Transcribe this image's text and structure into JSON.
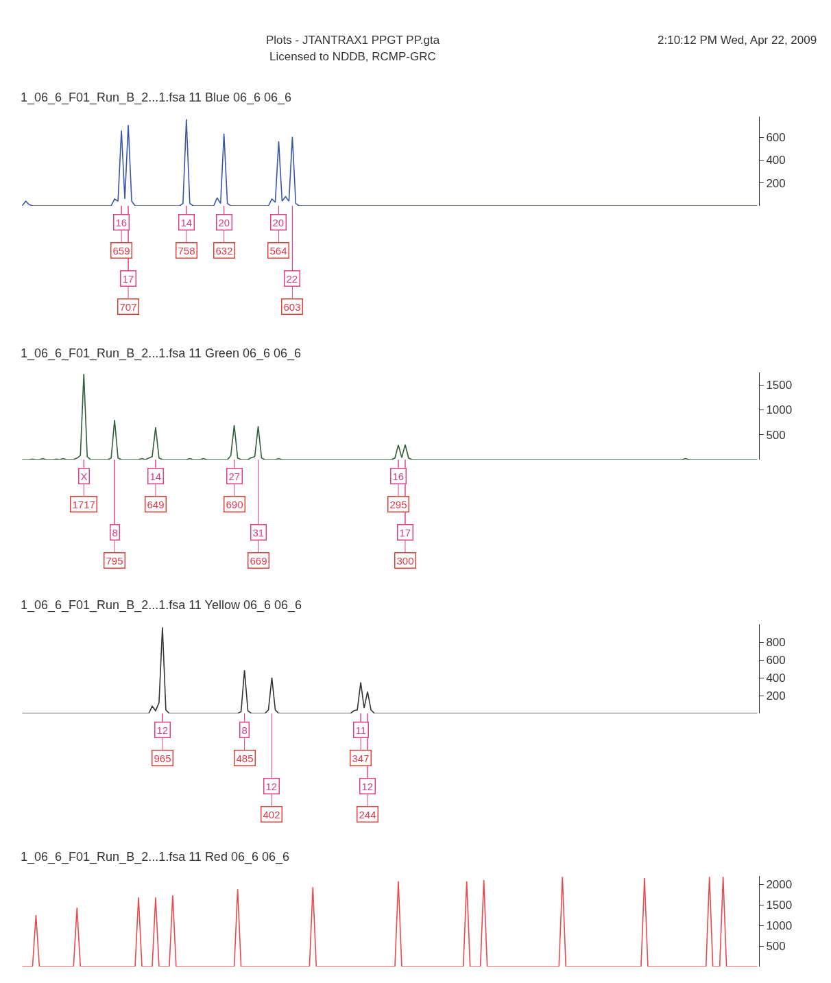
{
  "chart_data": [
    {
      "type": "line",
      "title": "1_06_6_F01_Run_B_2...1.fsa 11 Blue 06_6 06_6",
      "annotations": [
        "Plots - JTANTRAX1 PPGT PP.gta",
        "Licensed to NDDB, RCMP-GRC",
        "2:10:12 PM Wed, Apr 22, 2009",
        "16",
        "659",
        "17",
        "707",
        "14",
        "758",
        "20",
        "632",
        "20",
        "564",
        "22",
        "603"
      ],
      "color": "#3a56a8",
      "tick_labels": "y",
      "ylim": [
        0,
        780
      ],
      "yticks": [
        200,
        400,
        600
      ],
      "categories": [
        null,
        null,
        null,
        null,
        null,
        null,
        null,
        null,
        null,
        null,
        null,
        null,
        null,
        null,
        null,
        null,
        null,
        null,
        null,
        null,
        null,
        null,
        null,
        null,
        null,
        null,
        null,
        null,
        null,
        null,
        null,
        null,
        null,
        null,
        null,
        null,
        null,
        null,
        null,
        null,
        null,
        null,
        null,
        null,
        null,
        null,
        null,
        null,
        null,
        null,
        null,
        null,
        null,
        null,
        null,
        null,
        null,
        null,
        null,
        null,
        null,
        null,
        null,
        null,
        null,
        null,
        null,
        null,
        null,
        null,
        null,
        null,
        null,
        null,
        null,
        null,
        null,
        null,
        null,
        null,
        null,
        null,
        null,
        null,
        null,
        null,
        null,
        null,
        null,
        null,
        null,
        null,
        null,
        null,
        null,
        null,
        null,
        null,
        null,
        null,
        null,
        null,
        null,
        null,
        null,
        null,
        null,
        null,
        null,
        null,
        null,
        null,
        null,
        null,
        null,
        null,
        null,
        null,
        null,
        null,
        null,
        null,
        null,
        null,
        null,
        null,
        null,
        null,
        null,
        null,
        null,
        null,
        null,
        null,
        null,
        null,
        null,
        null,
        null,
        null,
        null,
        null,
        null,
        null,
        null,
        null,
        null,
        null,
        null,
        null,
        null,
        null,
        null,
        null,
        null,
        null,
        null,
        null,
        null,
        null,
        null,
        null,
        null,
        null,
        null,
        null,
        null,
        null,
        null,
        null,
        null,
        null,
        null,
        null,
        null,
        null,
        null,
        null,
        null,
        null,
        null,
        null,
        null,
        null,
        null,
        null,
        null,
        null,
        null,
        null,
        null,
        null,
        null,
        null,
        null,
        null,
        null,
        null,
        null,
        null,
        null,
        null,
        null,
        null,
        null,
        null,
        null,
        null,
        null,
        null,
        null,
        null,
        null,
        null,
        null,
        null
      ],
      "values": [
        0,
        40,
        10,
        0,
        0,
        0,
        0,
        0,
        0,
        0,
        0,
        0,
        0,
        0,
        0,
        0,
        0,
        0,
        0,
        0,
        0,
        0,
        0,
        0,
        0,
        0,
        0,
        60,
        40,
        659,
        60,
        707,
        40,
        0,
        0,
        0,
        0,
        0,
        0,
        0,
        0,
        0,
        0,
        0,
        0,
        0,
        0,
        20,
        758,
        20,
        0,
        0,
        0,
        0,
        0,
        0,
        0,
        70,
        20,
        632,
        20,
        0,
        0,
        0,
        0,
        0,
        0,
        0,
        0,
        0,
        0,
        0,
        0,
        60,
        30,
        564,
        40,
        80,
        40,
        603,
        20,
        0,
        0,
        0,
        0,
        0,
        0,
        0,
        0,
        0,
        0,
        0,
        0,
        0,
        0,
        0,
        0,
        0,
        0,
        0,
        0,
        0,
        0,
        0,
        0,
        0,
        0,
        0,
        0,
        0,
        0,
        0,
        0,
        0,
        0,
        0,
        0,
        0,
        0,
        0,
        0,
        0,
        0,
        0,
        0,
        0,
        0,
        0,
        0,
        0,
        0,
        0,
        0,
        0,
        0,
        0,
        0,
        0,
        0,
        0,
        0,
        0,
        0,
        0,
        0,
        0,
        0,
        0,
        0,
        0,
        0,
        0,
        0,
        0,
        0,
        0,
        0,
        0,
        0,
        0,
        0,
        0,
        0,
        0,
        0,
        0,
        0,
        0,
        0,
        0,
        0,
        0,
        0,
        0,
        0,
        0,
        0,
        0,
        0,
        0,
        0,
        0,
        0,
        0,
        0,
        0,
        0,
        0,
        0,
        0,
        0,
        0,
        0,
        0,
        0,
        0,
        0,
        0,
        0,
        0,
        0,
        0,
        0,
        0,
        0,
        0,
        0,
        0,
        0,
        0,
        0,
        0,
        0,
        0,
        0,
        0
      ]
    },
    {
      "type": "line",
      "title": "1_06_6_F01_Run_B_2...1.fsa 11 Green 06_6 06_6",
      "annotations": [
        "X",
        "1717",
        "8",
        "795",
        "14",
        "649",
        "27",
        "690",
        "31",
        "669",
        "16",
        "295",
        "17",
        "300"
      ],
      "color": "#2e5e3a",
      "tick_labels": "y",
      "ylim": [
        0,
        1750
      ],
      "yticks": [
        500,
        1000,
        1500
      ],
      "categories": [
        null,
        null,
        null,
        null,
        null,
        null,
        null,
        null,
        null,
        null,
        null,
        null,
        null,
        null,
        null,
        null,
        null,
        null,
        null,
        null,
        null,
        null,
        null,
        null,
        null,
        null,
        null,
        null,
        null,
        null,
        null,
        null,
        null,
        null,
        null,
        null,
        null,
        null,
        null,
        null,
        null,
        null,
        null,
        null,
        null,
        null,
        null,
        null,
        null,
        null,
        null,
        null,
        null,
        null,
        null,
        null,
        null,
        null,
        null,
        null,
        null,
        null,
        null,
        null,
        null,
        null,
        null,
        null,
        null,
        null,
        null,
        null,
        null,
        null,
        null,
        null,
        null,
        null,
        null,
        null,
        null,
        null,
        null,
        null,
        null,
        null,
        null,
        null,
        null,
        null,
        null,
        null,
        null,
        null,
        null,
        null,
        null,
        null,
        null,
        null,
        null,
        null,
        null,
        null,
        null,
        null,
        null,
        null,
        null,
        null,
        null,
        null,
        null,
        null,
        null,
        null,
        null,
        null,
        null,
        null,
        null,
        null,
        null,
        null,
        null,
        null,
        null,
        null,
        null,
        null,
        null,
        null,
        null,
        null,
        null,
        null,
        null,
        null,
        null,
        null,
        null,
        null,
        null,
        null,
        null,
        null,
        null,
        null,
        null,
        null,
        null,
        null,
        null,
        null,
        null,
        null,
        null,
        null,
        null,
        null,
        null,
        null,
        null,
        null,
        null,
        null,
        null,
        null,
        null,
        null,
        null,
        null,
        null,
        null,
        null,
        null,
        null,
        null,
        null,
        null,
        null,
        null,
        null,
        null,
        null,
        null,
        null,
        null,
        null,
        null,
        null,
        null,
        null,
        null,
        null,
        null,
        null,
        null,
        null,
        null,
        null,
        null,
        null,
        null,
        null,
        null,
        null,
        null,
        null,
        null,
        null,
        null,
        null,
        null,
        null,
        null
      ],
      "values": [
        0,
        0,
        0,
        10,
        0,
        0,
        20,
        0,
        0,
        0,
        10,
        0,
        20,
        0,
        0,
        0,
        30,
        80,
        1717,
        60,
        0,
        0,
        0,
        0,
        0,
        0,
        30,
        795,
        30,
        0,
        0,
        0,
        0,
        0,
        0,
        20,
        0,
        30,
        60,
        649,
        30,
        0,
        0,
        0,
        0,
        0,
        0,
        0,
        0,
        20,
        0,
        0,
        0,
        20,
        0,
        0,
        0,
        0,
        0,
        0,
        0,
        80,
        690,
        30,
        0,
        0,
        0,
        40,
        60,
        669,
        30,
        0,
        0,
        0,
        0,
        20,
        0,
        0,
        0,
        0,
        0,
        0,
        0,
        0,
        0,
        0,
        0,
        0,
        0,
        0,
        0,
        0,
        0,
        0,
        0,
        0,
        0,
        0,
        0,
        0,
        0,
        0,
        0,
        0,
        0,
        0,
        0,
        0,
        0,
        30,
        295,
        40,
        300,
        30,
        0,
        0,
        0,
        0,
        0,
        0,
        0,
        0,
        0,
        0,
        0,
        0,
        0,
        0,
        0,
        0,
        0,
        0,
        0,
        0,
        0,
        0,
        0,
        0,
        0,
        0,
        0,
        0,
        0,
        0,
        0,
        0,
        0,
        0,
        0,
        0,
        0,
        0,
        0,
        0,
        0,
        0,
        0,
        0,
        0,
        0,
        0,
        0,
        0,
        0,
        0,
        0,
        0,
        0,
        0,
        0,
        0,
        0,
        0,
        0,
        0,
        0,
        0,
        0,
        0,
        0,
        0,
        0,
        0,
        0,
        0,
        0,
        0,
        0,
        0,
        0,
        0,
        0,
        0,
        0,
        20,
        0,
        0,
        0,
        0,
        0,
        0,
        0,
        0,
        0,
        0,
        0,
        0,
        0,
        0,
        0,
        0,
        0,
        0,
        0,
        0,
        0
      ]
    },
    {
      "type": "line",
      "title": "1_06_6_F01_Run_B_2...1.fsa 11 Yellow 06_6 06_6",
      "annotations": [
        "12",
        "965",
        "8",
        "485",
        "12",
        "402",
        "11",
        "347",
        "12",
        "244"
      ],
      "color": "#333333",
      "tick_labels": "y",
      "ylim": [
        0,
        1000
      ],
      "yticks": [
        200,
        400,
        600,
        800
      ],
      "categories": [
        null,
        null,
        null,
        null,
        null,
        null,
        null,
        null,
        null,
        null,
        null,
        null,
        null,
        null,
        null,
        null,
        null,
        null,
        null,
        null,
        null,
        null,
        null,
        null,
        null,
        null,
        null,
        null,
        null,
        null,
        null,
        null,
        null,
        null,
        null,
        null,
        null,
        null,
        null,
        null,
        null,
        null,
        null,
        null,
        null,
        null,
        null,
        null,
        null,
        null,
        null,
        null,
        null,
        null,
        null,
        null,
        null,
        null,
        null,
        null,
        null,
        null,
        null,
        null,
        null,
        null,
        null,
        null,
        null,
        null,
        null,
        null,
        null,
        null,
        null,
        null,
        null,
        null,
        null,
        null,
        null,
        null,
        null,
        null,
        null,
        null,
        null,
        null,
        null,
        null,
        null,
        null,
        null,
        null,
        null,
        null,
        null,
        null,
        null,
        null,
        null,
        null,
        null,
        null,
        null,
        null,
        null,
        null,
        null,
        null,
        null,
        null,
        null,
        null,
        null,
        null,
        null,
        null,
        null,
        null,
        null,
        null,
        null,
        null,
        null,
        null,
        null,
        null,
        null,
        null,
        null,
        null,
        null,
        null,
        null,
        null,
        null,
        null,
        null,
        null,
        null,
        null,
        null,
        null,
        null,
        null,
        null,
        null,
        null,
        null,
        null,
        null,
        null,
        null,
        null,
        null,
        null,
        null,
        null,
        null,
        null,
        null,
        null,
        null,
        null,
        null,
        null,
        null,
        null,
        null,
        null,
        null,
        null,
        null,
        null,
        null,
        null,
        null,
        null,
        null,
        null,
        null,
        null,
        null,
        null,
        null,
        null,
        null,
        null,
        null,
        null,
        null,
        null,
        null,
        null,
        null,
        null,
        null,
        null,
        null,
        null,
        null,
        null,
        null,
        null,
        null,
        null,
        null,
        null,
        null,
        null,
        null,
        null,
        null,
        null,
        null
      ],
      "values": [
        0,
        0,
        0,
        0,
        0,
        0,
        0,
        0,
        0,
        0,
        0,
        0,
        0,
        0,
        0,
        0,
        0,
        0,
        0,
        0,
        0,
        0,
        0,
        0,
        0,
        0,
        0,
        0,
        0,
        0,
        0,
        0,
        0,
        0,
        0,
        0,
        0,
        0,
        80,
        30,
        120,
        965,
        40,
        0,
        0,
        0,
        0,
        0,
        0,
        0,
        0,
        0,
        0,
        0,
        0,
        0,
        0,
        0,
        0,
        0,
        0,
        0,
        0,
        0,
        20,
        485,
        30,
        0,
        0,
        0,
        0,
        0,
        40,
        402,
        40,
        0,
        0,
        0,
        0,
        0,
        0,
        0,
        0,
        0,
        0,
        0,
        0,
        0,
        0,
        0,
        0,
        0,
        0,
        0,
        0,
        0,
        0,
        30,
        40,
        347,
        60,
        244,
        40,
        0,
        0,
        0,
        0,
        0,
        0,
        0,
        0,
        0,
        0,
        0,
        0,
        0,
        0,
        0,
        0,
        0,
        0,
        0,
        0,
        0,
        0,
        0,
        0,
        0,
        0,
        0,
        0,
        0,
        0,
        0,
        0,
        0,
        0,
        0,
        0,
        0,
        0,
        0,
        0,
        0,
        0,
        0,
        0,
        0,
        0,
        0,
        0,
        0,
        0,
        0,
        0,
        0,
        0,
        0,
        0,
        0,
        0,
        0,
        0,
        0,
        0,
        0,
        0,
        0,
        0,
        0,
        0,
        0,
        0,
        0,
        0,
        0,
        0,
        0,
        0,
        0,
        0,
        0,
        0,
        0,
        0,
        0,
        0,
        0,
        0,
        0,
        0,
        0,
        0,
        0,
        0,
        0,
        0,
        0,
        0,
        0,
        0,
        0,
        0,
        0,
        0,
        0,
        0,
        0,
        0,
        0,
        0,
        0,
        0,
        0,
        0,
        0
      ]
    },
    {
      "type": "line",
      "title": "1_06_6_F01_Run_B_2...1.fsa 11 Red 06_6 06_6",
      "color": "#e8484e",
      "tick_labels": "y",
      "ylim": [
        0,
        2200
      ],
      "yticks": [
        500,
        1000,
        1500,
        2000
      ],
      "categories": [
        null,
        null,
        null,
        null,
        null,
        null,
        null,
        null,
        null,
        null,
        null,
        null,
        null,
        null,
        null,
        null,
        null,
        null,
        null,
        null,
        null,
        null,
        null,
        null,
        null,
        null,
        null,
        null,
        null,
        null,
        null,
        null,
        null,
        null,
        null,
        null,
        null,
        null,
        null,
        null,
        null,
        null,
        null,
        null,
        null,
        null,
        null,
        null,
        null,
        null,
        null,
        null,
        null,
        null,
        null,
        null,
        null,
        null,
        null,
        null,
        null,
        null,
        null,
        null,
        null,
        null,
        null,
        null,
        null,
        null,
        null,
        null,
        null,
        null,
        null,
        null,
        null,
        null,
        null,
        null,
        null,
        null,
        null,
        null,
        null,
        null,
        null,
        null,
        null,
        null,
        null,
        null,
        null,
        null,
        null,
        null,
        null,
        null,
        null,
        null,
        null,
        null,
        null,
        null,
        null,
        null,
        null,
        null,
        null,
        null,
        null,
        null,
        null,
        null,
        null,
        null,
        null,
        null,
        null,
        null,
        null,
        null,
        null,
        null,
        null,
        null,
        null,
        null,
        null,
        null,
        null,
        null,
        null,
        null,
        null,
        null,
        null,
        null,
        null,
        null,
        null,
        null,
        null,
        null,
        null,
        null,
        null,
        null,
        null,
        null,
        null,
        null,
        null,
        null,
        null,
        null,
        null,
        null,
        null,
        null,
        null,
        null,
        null,
        null,
        null,
        null,
        null,
        null,
        null,
        null,
        null,
        null,
        null,
        null,
        null,
        null,
        null,
        null,
        null,
        null,
        null,
        null,
        null,
        null,
        null,
        null,
        null,
        null,
        null,
        null,
        null,
        null,
        null,
        null,
        null,
        null,
        null,
        null,
        null,
        null,
        null,
        null,
        null,
        null,
        null,
        null,
        null,
        null,
        null,
        null,
        null,
        null,
        null,
        null,
        null,
        null
      ],
      "values": [
        0,
        0,
        0,
        0,
        1250,
        0,
        0,
        0,
        0,
        0,
        0,
        0,
        0,
        0,
        0,
        0,
        1430,
        0,
        0,
        0,
        0,
        0,
        0,
        0,
        0,
        0,
        0,
        0,
        0,
        0,
        0,
        0,
        0,
        0,
        1680,
        0,
        0,
        0,
        0,
        1680,
        0,
        0,
        0,
        0,
        1730,
        0,
        0,
        0,
        0,
        0,
        0,
        0,
        0,
        0,
        0,
        0,
        0,
        0,
        0,
        0,
        0,
        0,
        0,
        1880,
        0,
        0,
        0,
        0,
        0,
        0,
        0,
        0,
        0,
        0,
        0,
        0,
        0,
        0,
        0,
        0,
        0,
        0,
        0,
        0,
        0,
        1930,
        0,
        0,
        0,
        0,
        0,
        0,
        0,
        0,
        0,
        0,
        0,
        0,
        0,
        0,
        0,
        0,
        0,
        0,
        0,
        0,
        0,
        0,
        0,
        0,
        2070,
        0,
        0,
        0,
        0,
        0,
        0,
        0,
        0,
        0,
        0,
        0,
        0,
        0,
        0,
        0,
        0,
        0,
        0,
        0,
        2070,
        0,
        0,
        0,
        0,
        2100,
        0,
        0,
        0,
        0,
        0,
        0,
        0,
        0,
        0,
        0,
        0,
        0,
        0,
        0,
        0,
        0,
        0,
        0,
        0,
        0,
        0,
        0,
        2180,
        0,
        0,
        0,
        0,
        0,
        0,
        0,
        0,
        0,
        0,
        0,
        0,
        0,
        0,
        0,
        0,
        0,
        0,
        0,
        0,
        0,
        0,
        0,
        2150,
        0,
        0,
        0,
        0,
        0,
        0,
        0,
        0,
        0,
        0,
        0,
        0,
        0,
        0,
        0,
        0,
        0,
        0,
        2180,
        0,
        0,
        0,
        2180,
        0,
        0,
        0,
        0,
        0,
        0,
        0,
        0,
        0,
        0
      ]
    }
  ]
}
